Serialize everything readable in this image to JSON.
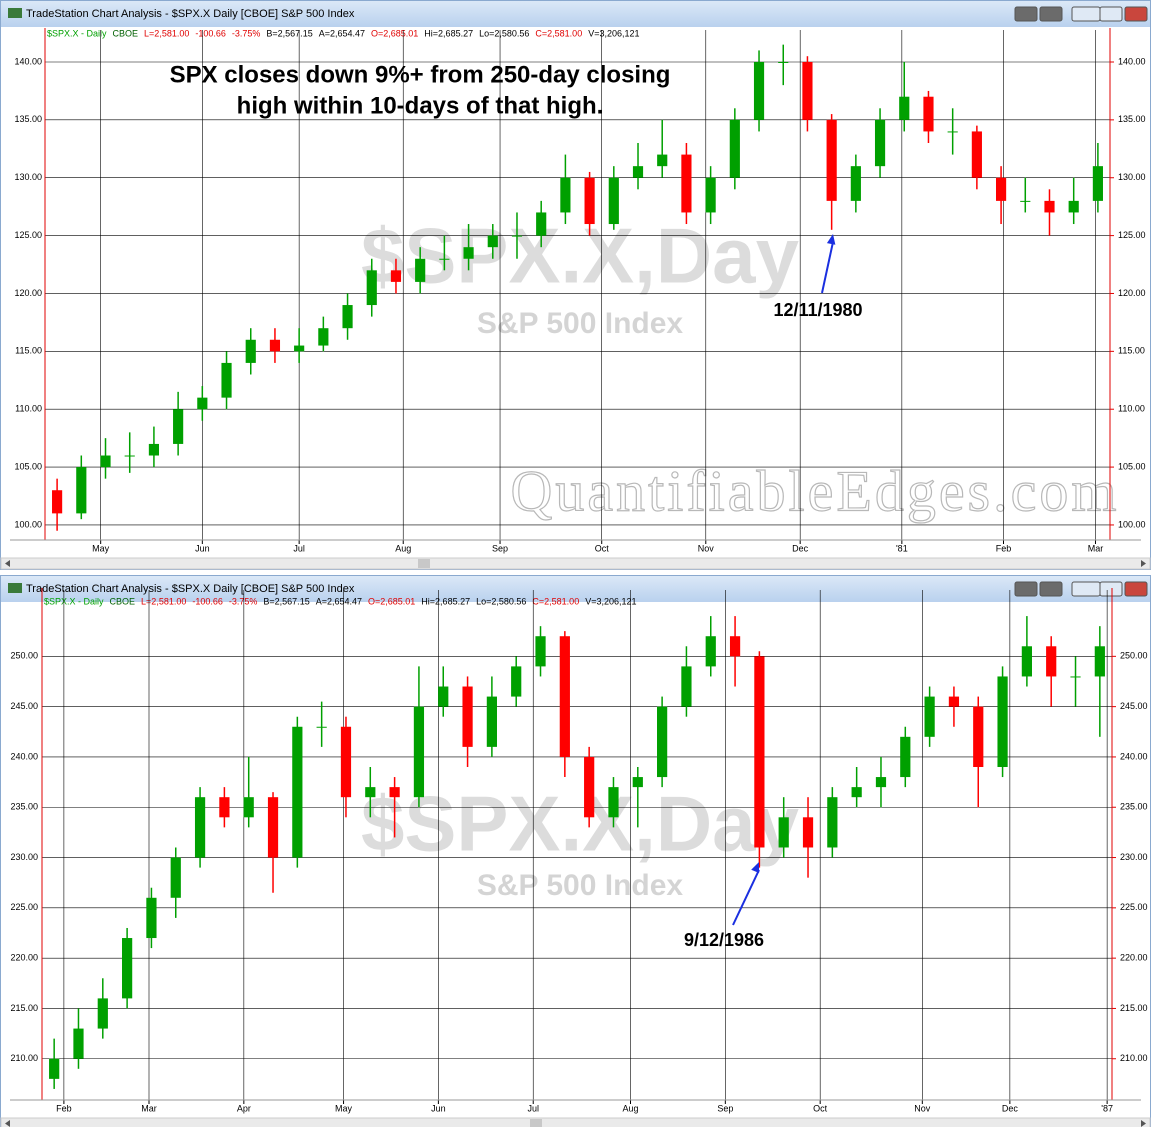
{
  "chart_data": [
    {
      "type": "candlestick",
      "window_title": "TradeStation Chart Analysis - $SPX.X Daily [CBOE] S&P 500 Index",
      "info": [
        {
          "text": "$SPX.X - Daily",
          "color": "#00a000"
        },
        {
          "text": "CBOE",
          "color": "#006000"
        },
        {
          "text": "L=2,581.00",
          "color": "#e00000"
        },
        {
          "text": "-100.66",
          "color": "#e00000"
        },
        {
          "text": "-3.75%",
          "color": "#e00000"
        },
        {
          "text": "B=2,567.15",
          "color": "#000000"
        },
        {
          "text": "A=2,654.47",
          "color": "#000000"
        },
        {
          "text": "O=2,685.01",
          "color": "#e00000"
        },
        {
          "text": "Hi=2,685.27",
          "color": "#000000"
        },
        {
          "text": "Lo=2,580.56",
          "color": "#000000"
        },
        {
          "text": "C=2,581.00",
          "color": "#e00000"
        },
        {
          "text": "V=3,206,121",
          "color": "#000000"
        }
      ],
      "watermark": "$SPX.X,Day",
      "watermark_sub": "S&P 500 Index",
      "watermark_site": "QuantifiableEdges.com",
      "title_lines": [
        "SPX closes down 9%+ from 250-day closing",
        "high within 10-days of that high."
      ],
      "annotation": "12/11/1980",
      "up_color": "#00a000",
      "down_color": "#ff0000",
      "open": [
        103,
        101,
        105,
        106,
        106,
        107,
        110,
        111,
        114,
        116,
        115,
        115.5,
        117,
        119,
        122,
        121,
        123,
        123,
        124,
        125,
        125,
        127,
        130,
        126,
        130,
        131,
        132,
        127,
        130,
        135,
        140,
        140,
        135,
        128,
        131,
        135,
        137,
        134,
        134,
        130,
        128,
        128,
        127,
        128
      ],
      "high": [
        104,
        106,
        107.5,
        108,
        108.5,
        111.5,
        112,
        115,
        117,
        117,
        117,
        118,
        120,
        123,
        123,
        124,
        125,
        126,
        126,
        127,
        128,
        132,
        130.5,
        131,
        133,
        135,
        133,
        131,
        136,
        141,
        141.5,
        140.5,
        135.5,
        132,
        136,
        140,
        137.5,
        136,
        134.5,
        131,
        130,
        129,
        130,
        133
      ],
      "low": [
        99.5,
        100.5,
        104,
        104.5,
        105,
        106,
        109,
        110,
        113,
        114,
        114,
        115,
        116,
        118,
        120,
        120,
        122,
        122,
        123,
        123,
        124,
        126,
        125,
        125.5,
        129,
        130,
        126,
        126,
        129,
        134,
        138,
        134,
        125.5,
        127,
        130,
        134,
        133,
        132,
        129,
        126,
        127,
        125,
        126,
        127
      ],
      "close": [
        101,
        105,
        106,
        106,
        107,
        110,
        111,
        114,
        116,
        115,
        115.5,
        117,
        119,
        122,
        121,
        123,
        123,
        124,
        125,
        125,
        127,
        130,
        126,
        130,
        131,
        132,
        127,
        130,
        135,
        140,
        140,
        135,
        128,
        131,
        135,
        137,
        134,
        134,
        130,
        128,
        128,
        127,
        128,
        131
      ],
      "xlim": [
        0,
        44
      ],
      "xticks": [
        {
          "value": 2.3,
          "label": "May"
        },
        {
          "value": 6.5,
          "label": "Jun"
        },
        {
          "value": 10.5,
          "label": "Jul"
        },
        {
          "value": 14.8,
          "label": "Aug"
        },
        {
          "value": 18.8,
          "label": "Sep"
        },
        {
          "value": 23.0,
          "label": "Oct"
        },
        {
          "value": 27.3,
          "label": "Nov"
        },
        {
          "value": 31.2,
          "label": "Dec"
        },
        {
          "value": 35.4,
          "label": "'81"
        },
        {
          "value": 39.6,
          "label": "Feb"
        },
        {
          "value": 43.4,
          "label": "Mar"
        }
      ],
      "ylim": [
        98.7,
        141.9
      ],
      "yticks": [
        {
          "value": 100,
          "label": "100.00"
        },
        {
          "value": 105,
          "label": "105.00"
        },
        {
          "value": 110,
          "label": "110.00"
        },
        {
          "value": 115,
          "label": "115.00"
        },
        {
          "value": 120,
          "label": "120.00"
        },
        {
          "value": 125,
          "label": "125.00"
        },
        {
          "value": 130,
          "label": "130.00"
        },
        {
          "value": 135,
          "label": "135.00"
        },
        {
          "value": 140,
          "label": "140.00"
        }
      ],
      "grid": true
    },
    {
      "type": "candlestick",
      "window_title": "TradeStation Chart Analysis - $SPX.X Daily [CBOE] S&P 500 Index",
      "info": [
        {
          "text": "$SPX.X - Daily",
          "color": "#00a000"
        },
        {
          "text": "CBOE",
          "color": "#006000"
        },
        {
          "text": "L=2,581.00",
          "color": "#e00000"
        },
        {
          "text": "-100.66",
          "color": "#e00000"
        },
        {
          "text": "-3.75%",
          "color": "#e00000"
        },
        {
          "text": "B=2,567.15",
          "color": "#000000"
        },
        {
          "text": "A=2,654.47",
          "color": "#000000"
        },
        {
          "text": "O=2,685.01",
          "color": "#e00000"
        },
        {
          "text": "Hi=2,685.27",
          "color": "#000000"
        },
        {
          "text": "Lo=2,580.56",
          "color": "#000000"
        },
        {
          "text": "C=2,581.00",
          "color": "#e00000"
        },
        {
          "text": "V=3,206,121",
          "color": "#000000"
        }
      ],
      "watermark": "$SPX.X,Day",
      "watermark_sub": "S&P 500 Index",
      "annotation": "9/12/1986",
      "up_color": "#00a000",
      "down_color": "#ff0000",
      "open": [
        208,
        210,
        213,
        216,
        222,
        226,
        230,
        236,
        234,
        236,
        230,
        243,
        243,
        236,
        237,
        236,
        245,
        247,
        241,
        246,
        249,
        252,
        240,
        234,
        237,
        238,
        245,
        249,
        252,
        250,
        231,
        234,
        231,
        236,
        237,
        238,
        242,
        246,
        245,
        239,
        248,
        251,
        248,
        248
      ],
      "high": [
        212,
        215,
        218,
        223,
        227,
        231,
        237,
        237,
        240,
        236.5,
        244,
        245.5,
        244,
        239,
        238,
        249,
        249,
        248,
        248,
        250,
        253,
        252.5,
        241,
        238,
        239,
        246,
        251,
        254,
        254,
        250.5,
        236,
        236,
        237,
        239,
        240,
        243,
        247,
        247,
        246,
        249,
        254,
        252,
        250,
        253
      ],
      "low": [
        207,
        209,
        212,
        215,
        221,
        224,
        229,
        233,
        233,
        226.5,
        229,
        241,
        234,
        234,
        232,
        235,
        244,
        239,
        240,
        245,
        248,
        238,
        233,
        233,
        233,
        237,
        244,
        248,
        247,
        229,
        230,
        228,
        230,
        235,
        235,
        237,
        241,
        243,
        235,
        238,
        247,
        245,
        245,
        242
      ],
      "close": [
        210,
        213,
        216,
        222,
        226,
        230,
        236,
        234,
        236,
        230,
        243,
        243,
        236,
        237,
        236,
        245,
        247,
        241,
        246,
        249,
        252,
        240,
        234,
        237,
        238,
        245,
        249,
        252,
        250,
        231,
        234,
        231,
        236,
        237,
        238,
        242,
        246,
        245,
        239,
        248,
        251,
        248,
        248,
        251
      ],
      "xlim": [
        0,
        44
      ],
      "xticks": [
        {
          "value": 0.9,
          "label": "Feb"
        },
        {
          "value": 4.4,
          "label": "Mar"
        },
        {
          "value": 8.3,
          "label": "Apr"
        },
        {
          "value": 12.4,
          "label": "May"
        },
        {
          "value": 16.3,
          "label": "Jun"
        },
        {
          "value": 20.2,
          "label": "Jul"
        },
        {
          "value": 24.2,
          "label": "Aug"
        },
        {
          "value": 28.1,
          "label": "Sep"
        },
        {
          "value": 32.0,
          "label": "Oct"
        },
        {
          "value": 36.2,
          "label": "Nov"
        },
        {
          "value": 39.8,
          "label": "Dec"
        },
        {
          "value": 43.8,
          "label": "'87"
        }
      ],
      "ylim": [
        205.9,
        255.6
      ],
      "yticks": [
        {
          "value": 210,
          "label": "210.00"
        },
        {
          "value": 215,
          "label": "215.00"
        },
        {
          "value": 220,
          "label": "220.00"
        },
        {
          "value": 225,
          "label": "225.00"
        },
        {
          "value": 230,
          "label": "230.00"
        },
        {
          "value": 235,
          "label": "235.00"
        },
        {
          "value": 240,
          "label": "240.00"
        },
        {
          "value": 245,
          "label": "245.00"
        },
        {
          "value": 250,
          "label": "250.00"
        }
      ],
      "grid": true
    }
  ]
}
